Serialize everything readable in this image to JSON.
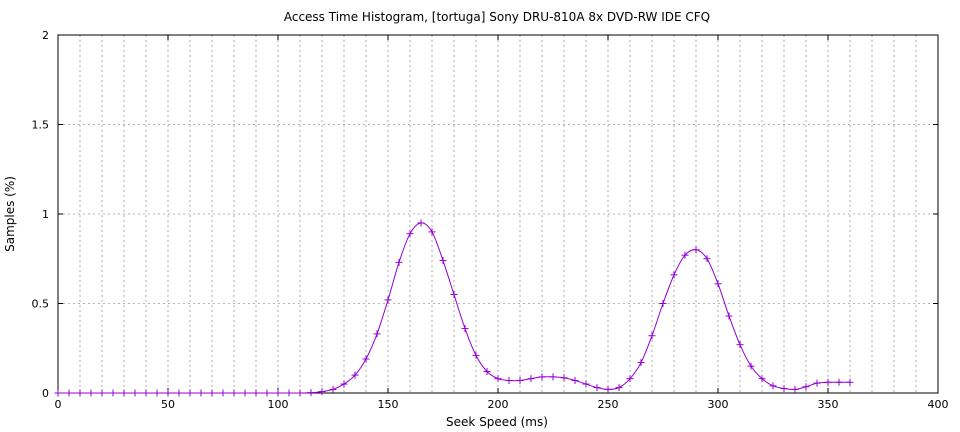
{
  "chart_data": {
    "type": "line",
    "title": "Access Time Histogram, [tortuga] Sony DRU-810A 8x DVD-RW IDE CFQ",
    "xlabel": "Seek Speed (ms)",
    "ylabel": "Samples (%)",
    "xlim": [
      0,
      400
    ],
    "ylim": [
      0,
      2
    ],
    "x_ticks": [
      "0",
      "50",
      "100",
      "150",
      "200",
      "250",
      "300",
      "350",
      "400"
    ],
    "y_ticks": [
      "0",
      "0.5",
      "1",
      "1.5",
      "2"
    ],
    "x_minor_grid_step": 10,
    "y_grid_step": 0.5,
    "grid": true,
    "series": [
      {
        "color": "#9400d3",
        "marker": "plus",
        "x": [
          0,
          5,
          10,
          15,
          20,
          25,
          30,
          35,
          40,
          45,
          50,
          55,
          60,
          65,
          70,
          75,
          80,
          85,
          90,
          95,
          100,
          105,
          110,
          115,
          120,
          125,
          130,
          135,
          140,
          145,
          150,
          155,
          160,
          165,
          170,
          175,
          180,
          185,
          190,
          195,
          200,
          205,
          210,
          215,
          220,
          225,
          230,
          235,
          240,
          245,
          250,
          255,
          260,
          265,
          270,
          275,
          280,
          285,
          290,
          295,
          300,
          305,
          310,
          315,
          320,
          325,
          330,
          335,
          340,
          345,
          350,
          355,
          360
        ],
        "y": [
          0,
          0,
          0,
          0,
          0,
          0,
          0,
          0,
          0,
          0,
          0,
          0,
          0,
          0,
          0,
          0,
          0,
          0,
          0,
          0,
          0,
          0,
          0,
          0.002,
          0.008,
          0.02,
          0.05,
          0.1,
          0.19,
          0.33,
          0.52,
          0.73,
          0.89,
          0.95,
          0.9,
          0.74,
          0.55,
          0.36,
          0.21,
          0.12,
          0.08,
          0.07,
          0.07,
          0.08,
          0.09,
          0.09,
          0.085,
          0.07,
          0.05,
          0.03,
          0.02,
          0.03,
          0.08,
          0.17,
          0.32,
          0.5,
          0.66,
          0.77,
          0.8,
          0.75,
          0.61,
          0.43,
          0.27,
          0.15,
          0.08,
          0.04,
          0.025,
          0.02,
          0.035,
          0.055,
          0.06,
          0.06,
          0.06
        ]
      }
    ]
  }
}
